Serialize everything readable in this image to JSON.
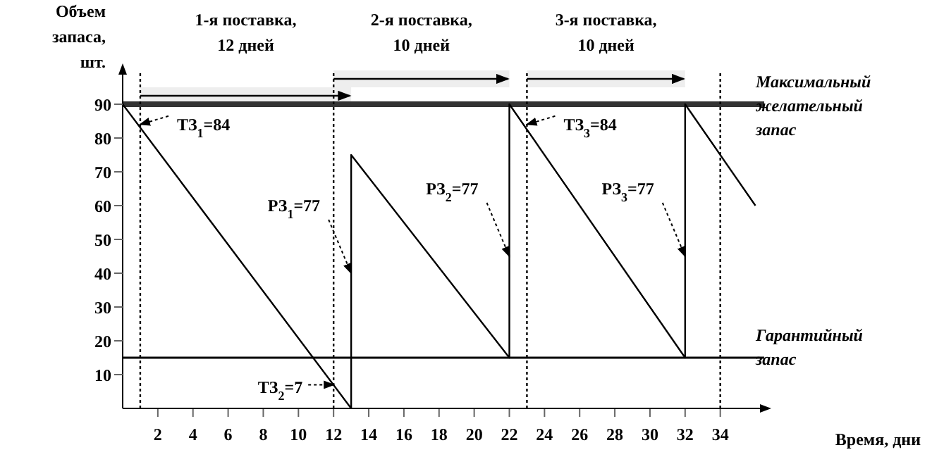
{
  "chart_data": {
    "type": "line",
    "xlabel": "Время, дни",
    "ylabel": "Объем запаса, шт.",
    "xlim": [
      0,
      36.5
    ],
    "ylim": [
      0,
      100
    ],
    "xticks": [
      2,
      4,
      6,
      8,
      10,
      12,
      14,
      16,
      18,
      20,
      22,
      24,
      26,
      28,
      30,
      32,
      34
    ],
    "yticks": [
      10,
      20,
      30,
      40,
      50,
      60,
      70,
      80,
      90
    ],
    "series": [
      {
        "color": "#000000",
        "x": [
          0,
          13,
          13,
          22,
          22,
          32,
          32,
          36
        ],
        "values": [
          90,
          0,
          75,
          15,
          90,
          15,
          90,
          60
        ]
      }
    ],
    "marker": "none",
    "line_style": "solid",
    "grid": false,
    "ref_lines": [
      {
        "axis": "y",
        "value": 90,
        "label": "Максимальный желательный запас",
        "color": "#333333",
        "line_style": "solid"
      },
      {
        "axis": "y",
        "value": 15,
        "label": "Гарантийный запас",
        "color": "#000000",
        "line_style": "solid"
      },
      {
        "axis": "x",
        "value": 1,
        "color": "#000000",
        "line_style": "dotted"
      },
      {
        "axis": "x",
        "value": 12,
        "color": "#000000",
        "line_style": "dotted"
      },
      {
        "axis": "x",
        "value": 23,
        "color": "#000000",
        "line_style": "dotted"
      },
      {
        "axis": "x",
        "value": 34,
        "color": "#000000",
        "line_style": "dotted"
      }
    ],
    "bands": [
      {
        "axis": "x",
        "from": 1,
        "to": 13,
        "label": "1-я поставка, 12 дней",
        "color": "#eeeeee"
      },
      {
        "axis": "x",
        "from": 12,
        "to": 22,
        "label": "2-я поставка, 10 дней",
        "color": "#eeeeee"
      },
      {
        "axis": "x",
        "from": 23,
        "to": 32,
        "label": "3-я поставка, 10 дней",
        "color": "#eeeeee"
      }
    ],
    "annotations": [
      {
        "text": "ТЗ$_{1}$=84",
        "x": 1,
        "y": 84
      },
      {
        "text": "РЗ$_{1}$=77",
        "x": 13,
        "y": 40
      },
      {
        "text": "ТЗ$_{2}$=7",
        "x": 12,
        "y": 7
      },
      {
        "text": "РЗ$_{2}$=77",
        "x": 22,
        "y": 45
      },
      {
        "text": "ТЗ$_{3}$=84",
        "x": 23,
        "y": 84
      },
      {
        "text": "РЗ$_{3}$=77",
        "x": 32,
        "y": 45
      }
    ]
  }
}
